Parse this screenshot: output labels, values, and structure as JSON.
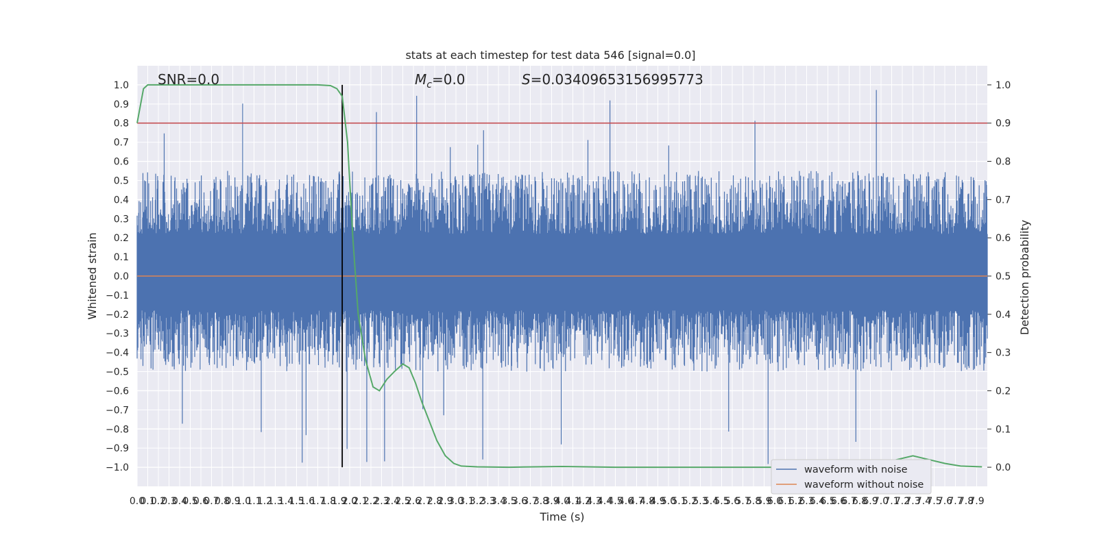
{
  "chart_data": {
    "type": "line",
    "title": "stats at each timestep for test data 546 [signal=0.0]",
    "xlabel": "Time (s)",
    "ylabel_left": "Whitened strain",
    "ylabel_right": "Detection probability",
    "xlim": [
      0.0,
      8.0
    ],
    "ylim_left": [
      -1.1,
      1.1
    ],
    "ylim_right": [
      -0.05,
      1.05
    ],
    "xticks": [
      "0.0",
      "0.1",
      "0.2",
      "0.3",
      "0.4",
      "0.5",
      "0.6",
      "0.7",
      "0.8",
      "0.9",
      "1.0",
      "1.1",
      "1.2",
      "1.3",
      "1.4",
      "1.5",
      "1.6",
      "1.7",
      "1.8",
      "1.9",
      "2.0",
      "2.1",
      "2.2",
      "2.3",
      "2.4",
      "2.5",
      "2.6",
      "2.7",
      "2.8",
      "2.9",
      "3.0",
      "3.1",
      "3.2",
      "3.3",
      "3.4",
      "3.5",
      "3.6",
      "3.7",
      "3.8",
      "3.9",
      "4.0",
      "4.1",
      "4.2",
      "4.3",
      "4.4",
      "4.5",
      "4.6",
      "4.7",
      "4.8",
      "4.9",
      "5.0",
      "5.1",
      "5.2",
      "5.3",
      "5.4",
      "5.5",
      "5.6",
      "5.7",
      "5.8",
      "5.9",
      "6.0",
      "6.1",
      "6.2",
      "6.3",
      "6.4",
      "6.5",
      "6.6",
      "6.7",
      "6.8",
      "6.9",
      "7.0",
      "7.1",
      "7.2",
      "7.3",
      "7.4",
      "7.5",
      "7.6",
      "7.7",
      "7.8",
      "7.9"
    ],
    "yticks_left": [
      "−1.0",
      "−0.9",
      "−0.8",
      "−0.7",
      "−0.6",
      "−0.5",
      "−0.4",
      "−0.3",
      "−0.2",
      "−0.1",
      "0.0",
      "0.1",
      "0.2",
      "0.3",
      "0.4",
      "0.5",
      "0.6",
      "0.7",
      "0.8",
      "0.9",
      "1.0"
    ],
    "yticks_right": [
      "0.0",
      "0.1",
      "0.2",
      "0.3",
      "0.4",
      "0.5",
      "0.6",
      "0.7",
      "0.8",
      "0.9",
      "1.0"
    ],
    "annotations": {
      "snr": "SNR=0.0",
      "mc_symbol": "M",
      "mc_subscript": "c",
      "mc_value": "=0.0",
      "s_symbol": "S",
      "s_value": "=0.03409653156995773"
    },
    "threshold_right": 0.9,
    "vline_x": 1.93,
    "series": [
      {
        "name": "waveform with noise",
        "color": "#4c72b0",
        "axis": "left",
        "description_stats": {
          "typical_positive_peak": 0.55,
          "typical_negative_peak": -0.5,
          "max": 0.98,
          "min": -1.0
        }
      },
      {
        "name": "waveform without noise",
        "color": "#dd8452",
        "axis": "left",
        "constant": 0.0
      },
      {
        "color": "#55a868",
        "axis": "right",
        "x": [
          0.0,
          0.06,
          0.1,
          0.2,
          0.5,
          1.0,
          1.5,
          1.7,
          1.82,
          1.88,
          1.93,
          1.98,
          2.03,
          2.08,
          2.15,
          2.22,
          2.28,
          2.35,
          2.42,
          2.5,
          2.56,
          2.62,
          2.68,
          2.75,
          2.82,
          2.9,
          2.98,
          3.05,
          3.2,
          3.5,
          4.0,
          4.5,
          5.0,
          5.5,
          6.0,
          6.5,
          6.8,
          7.0,
          7.15,
          7.3,
          7.45,
          7.6,
          7.75,
          7.95
        ],
        "y": [
          0.9,
          0.99,
          1.0,
          1.0,
          1.0,
          1.0,
          1.0,
          1.0,
          0.998,
          0.99,
          0.97,
          0.85,
          0.6,
          0.4,
          0.28,
          0.21,
          0.2,
          0.23,
          0.25,
          0.27,
          0.26,
          0.22,
          0.17,
          0.12,
          0.07,
          0.03,
          0.01,
          0.003,
          0.001,
          0.0,
          0.002,
          0.0,
          0.0,
          0.0,
          0.0,
          0.002,
          0.004,
          0.01,
          0.02,
          0.03,
          0.02,
          0.01,
          0.003,
          0.001
        ]
      }
    ],
    "legend_placement": "lower right",
    "grid": true,
    "colors": {
      "axes_bg": "#eaeaf2",
      "grid": "#ffffff",
      "threshold": "#c44e52",
      "vline": "#000000",
      "text": "#262626"
    }
  }
}
